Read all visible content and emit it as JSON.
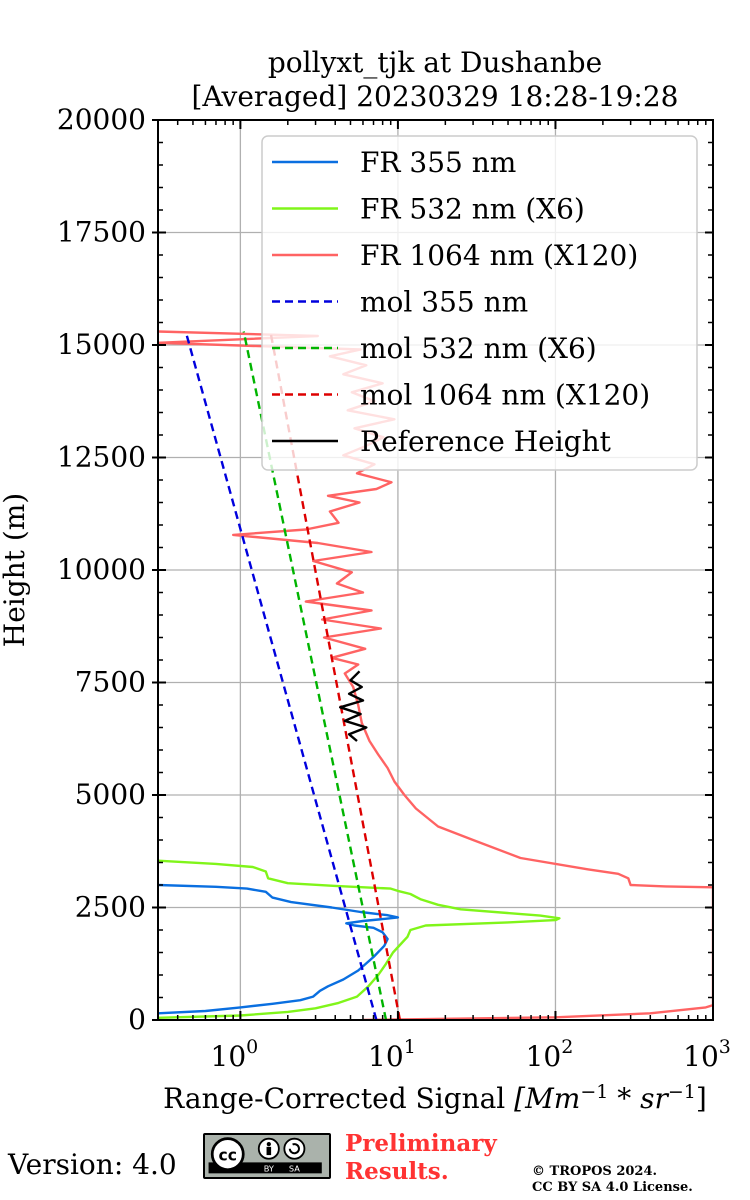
{
  "chart_data": {
    "type": "line",
    "title": "pollyxt_tjk at Dushanbe",
    "subtitle": "[Averaged] 20230329 18:28-19:28",
    "xlabel": "Range-Corrected Signal",
    "xlabel_unit": "[Mm^{-1}*sr^{-1}]",
    "ylabel": "Height (m)",
    "xscale": "log",
    "xlim": [
      0.3,
      1000
    ],
    "ylim": [
      0,
      20000
    ],
    "grid": true,
    "legend_position": "top-right",
    "y_ticks": [
      0,
      2500,
      5000,
      7500,
      10000,
      12500,
      15000,
      17500,
      20000
    ],
    "x_ticks": [
      {
        "base": "10",
        "exp": "0",
        "value": 1
      },
      {
        "base": "10",
        "exp": "1",
        "value": 10
      },
      {
        "base": "10",
        "exp": "2",
        "value": 100
      },
      {
        "base": "10",
        "exp": "3",
        "value": 1000
      }
    ],
    "series": [
      {
        "name": "FR 355 nm",
        "color": "#0a6fe0",
        "style": "solid",
        "points": [
          [
            0.3,
            150
          ],
          [
            0.6,
            200
          ],
          [
            1.0,
            280
          ],
          [
            1.6,
            360
          ],
          [
            2.4,
            440
          ],
          [
            2.9,
            520
          ],
          [
            3.2,
            650
          ],
          [
            3.6,
            750
          ],
          [
            4.5,
            900
          ],
          [
            5.6,
            1100
          ],
          [
            7.0,
            1400
          ],
          [
            8.2,
            1650
          ],
          [
            8.6,
            1800
          ],
          [
            8.0,
            1950
          ],
          [
            7.0,
            2050
          ],
          [
            5.3,
            2100
          ],
          [
            4.7,
            2150
          ],
          [
            6.0,
            2200
          ],
          [
            8.3,
            2250
          ],
          [
            10.0,
            2280
          ],
          [
            8.5,
            2330
          ],
          [
            5.8,
            2400
          ],
          [
            3.8,
            2500
          ],
          [
            2.1,
            2620
          ],
          [
            1.6,
            2720
          ],
          [
            1.45,
            2850
          ],
          [
            1.1,
            2920
          ],
          [
            0.7,
            2960
          ],
          [
            0.3,
            3000
          ]
        ]
      },
      {
        "name": "FR 532 nm (X6)",
        "color": "#80f51a",
        "style": "solid",
        "points": [
          [
            0.3,
            50
          ],
          [
            1.0,
            100
          ],
          [
            2.0,
            180
          ],
          [
            3.0,
            260
          ],
          [
            4.2,
            380
          ],
          [
            5.5,
            520
          ],
          [
            6.5,
            750
          ],
          [
            7.5,
            1000
          ],
          [
            8.4,
            1250
          ],
          [
            9.3,
            1500
          ],
          [
            10.5,
            1700
          ],
          [
            11.5,
            1850
          ],
          [
            12.0,
            2000
          ],
          [
            15.0,
            2100
          ],
          [
            50.0,
            2170
          ],
          [
            100.0,
            2220
          ],
          [
            106.0,
            2260
          ],
          [
            80.0,
            2320
          ],
          [
            25.0,
            2460
          ],
          [
            18.0,
            2560
          ],
          [
            14.0,
            2680
          ],
          [
            12.0,
            2800
          ],
          [
            10.0,
            2870
          ],
          [
            9.0,
            2920
          ],
          [
            4.0,
            2980
          ],
          [
            2.0,
            3040
          ],
          [
            1.5,
            3150
          ],
          [
            1.45,
            3300
          ],
          [
            1.2,
            3400
          ],
          [
            0.7,
            3470
          ],
          [
            0.3,
            3540
          ]
        ]
      },
      {
        "name": "FR 1064 nm (X120)",
        "color": "#ff6363",
        "style": "solid",
        "points": [
          [
            6,
            0
          ],
          [
            100,
            60
          ],
          [
            400,
            150
          ],
          [
            900,
            280
          ],
          [
            1000,
            330
          ],
          [
            1000,
            2950
          ],
          [
            500,
            2970
          ],
          [
            300,
            3000
          ],
          [
            290,
            3150
          ],
          [
            250,
            3250
          ],
          [
            160,
            3350
          ],
          [
            60,
            3600
          ],
          [
            30,
            4000
          ],
          [
            18,
            4300
          ],
          [
            13,
            4700
          ],
          [
            11,
            5000
          ],
          [
            9.5,
            5300
          ],
          [
            8.6,
            5600
          ],
          [
            7.5,
            5900
          ],
          [
            6.6,
            6200
          ],
          [
            5.9,
            6600
          ],
          [
            5.6,
            7000
          ],
          [
            5.2,
            7400
          ],
          [
            4.6,
            7700
          ],
          [
            5.6,
            7900
          ],
          [
            3.8,
            8050
          ],
          [
            6.2,
            8250
          ],
          [
            3.4,
            8500
          ],
          [
            7.8,
            8700
          ],
          [
            3.3,
            8900
          ],
          [
            6.8,
            9100
          ],
          [
            2.6,
            9300
          ],
          [
            6.0,
            9500
          ],
          [
            4.1,
            9700
          ],
          [
            5.1,
            9950
          ],
          [
            2.9,
            10200
          ],
          [
            6.8,
            10400
          ],
          [
            3.1,
            10600
          ],
          [
            0.9,
            10780
          ],
          [
            2.6,
            10900
          ],
          [
            4.2,
            11050
          ],
          [
            3.7,
            11300
          ],
          [
            5.7,
            11500
          ],
          [
            3.6,
            11650
          ],
          [
            7.3,
            11800
          ],
          [
            9.1,
            11950
          ],
          [
            5.5,
            12150
          ],
          [
            7.1,
            12350
          ],
          [
            4.5,
            12550
          ],
          [
            6.2,
            12750
          ],
          [
            8.1,
            12950
          ],
          [
            5.3,
            13150
          ],
          [
            9.5,
            13350
          ],
          [
            4.8,
            13550
          ],
          [
            7.1,
            13750
          ],
          [
            5.1,
            13950
          ],
          [
            8.0,
            14150
          ],
          [
            4.5,
            14350
          ],
          [
            6.3,
            14550
          ],
          [
            3.7,
            14750
          ],
          [
            5.8,
            14900
          ],
          [
            0.3,
            15050
          ],
          [
            3.1,
            15200
          ],
          [
            0.3,
            15300
          ]
        ]
      },
      {
        "name": "mol 355 nm",
        "color": "#0000dd",
        "style": "dashed",
        "points": [
          [
            7.3,
            0
          ],
          [
            0.45,
            15300
          ]
        ]
      },
      {
        "name": "mol 532 nm (X6)",
        "color": "#00b400",
        "style": "dashed",
        "points": [
          [
            8.4,
            0
          ],
          [
            1.05,
            15300
          ]
        ]
      },
      {
        "name": "mol 1064 nm (X120)",
        "color": "#dd0000",
        "style": "dashed",
        "points": [
          [
            10.3,
            0
          ],
          [
            1.55,
            15300
          ]
        ]
      },
      {
        "name": "Reference Height",
        "color": "#000000",
        "style": "solid",
        "points": [
          [
            5.5,
            6200
          ],
          [
            4.9,
            6350
          ],
          [
            6.3,
            6500
          ],
          [
            4.6,
            6650
          ],
          [
            5.8,
            6800
          ],
          [
            4.3,
            6950
          ],
          [
            6.0,
            7100
          ],
          [
            4.9,
            7250
          ],
          [
            5.9,
            7400
          ],
          [
            5.0,
            7550
          ],
          [
            5.7,
            7750
          ]
        ]
      }
    ]
  },
  "footer": {
    "version": "Version: 4.0",
    "license_badge_text": [
      "BY",
      "SA"
    ],
    "preliminary": [
      "Preliminary",
      "Results."
    ],
    "copyright": [
      "© TROPOS 2024.",
      "CC BY SA 4.0 License."
    ]
  }
}
